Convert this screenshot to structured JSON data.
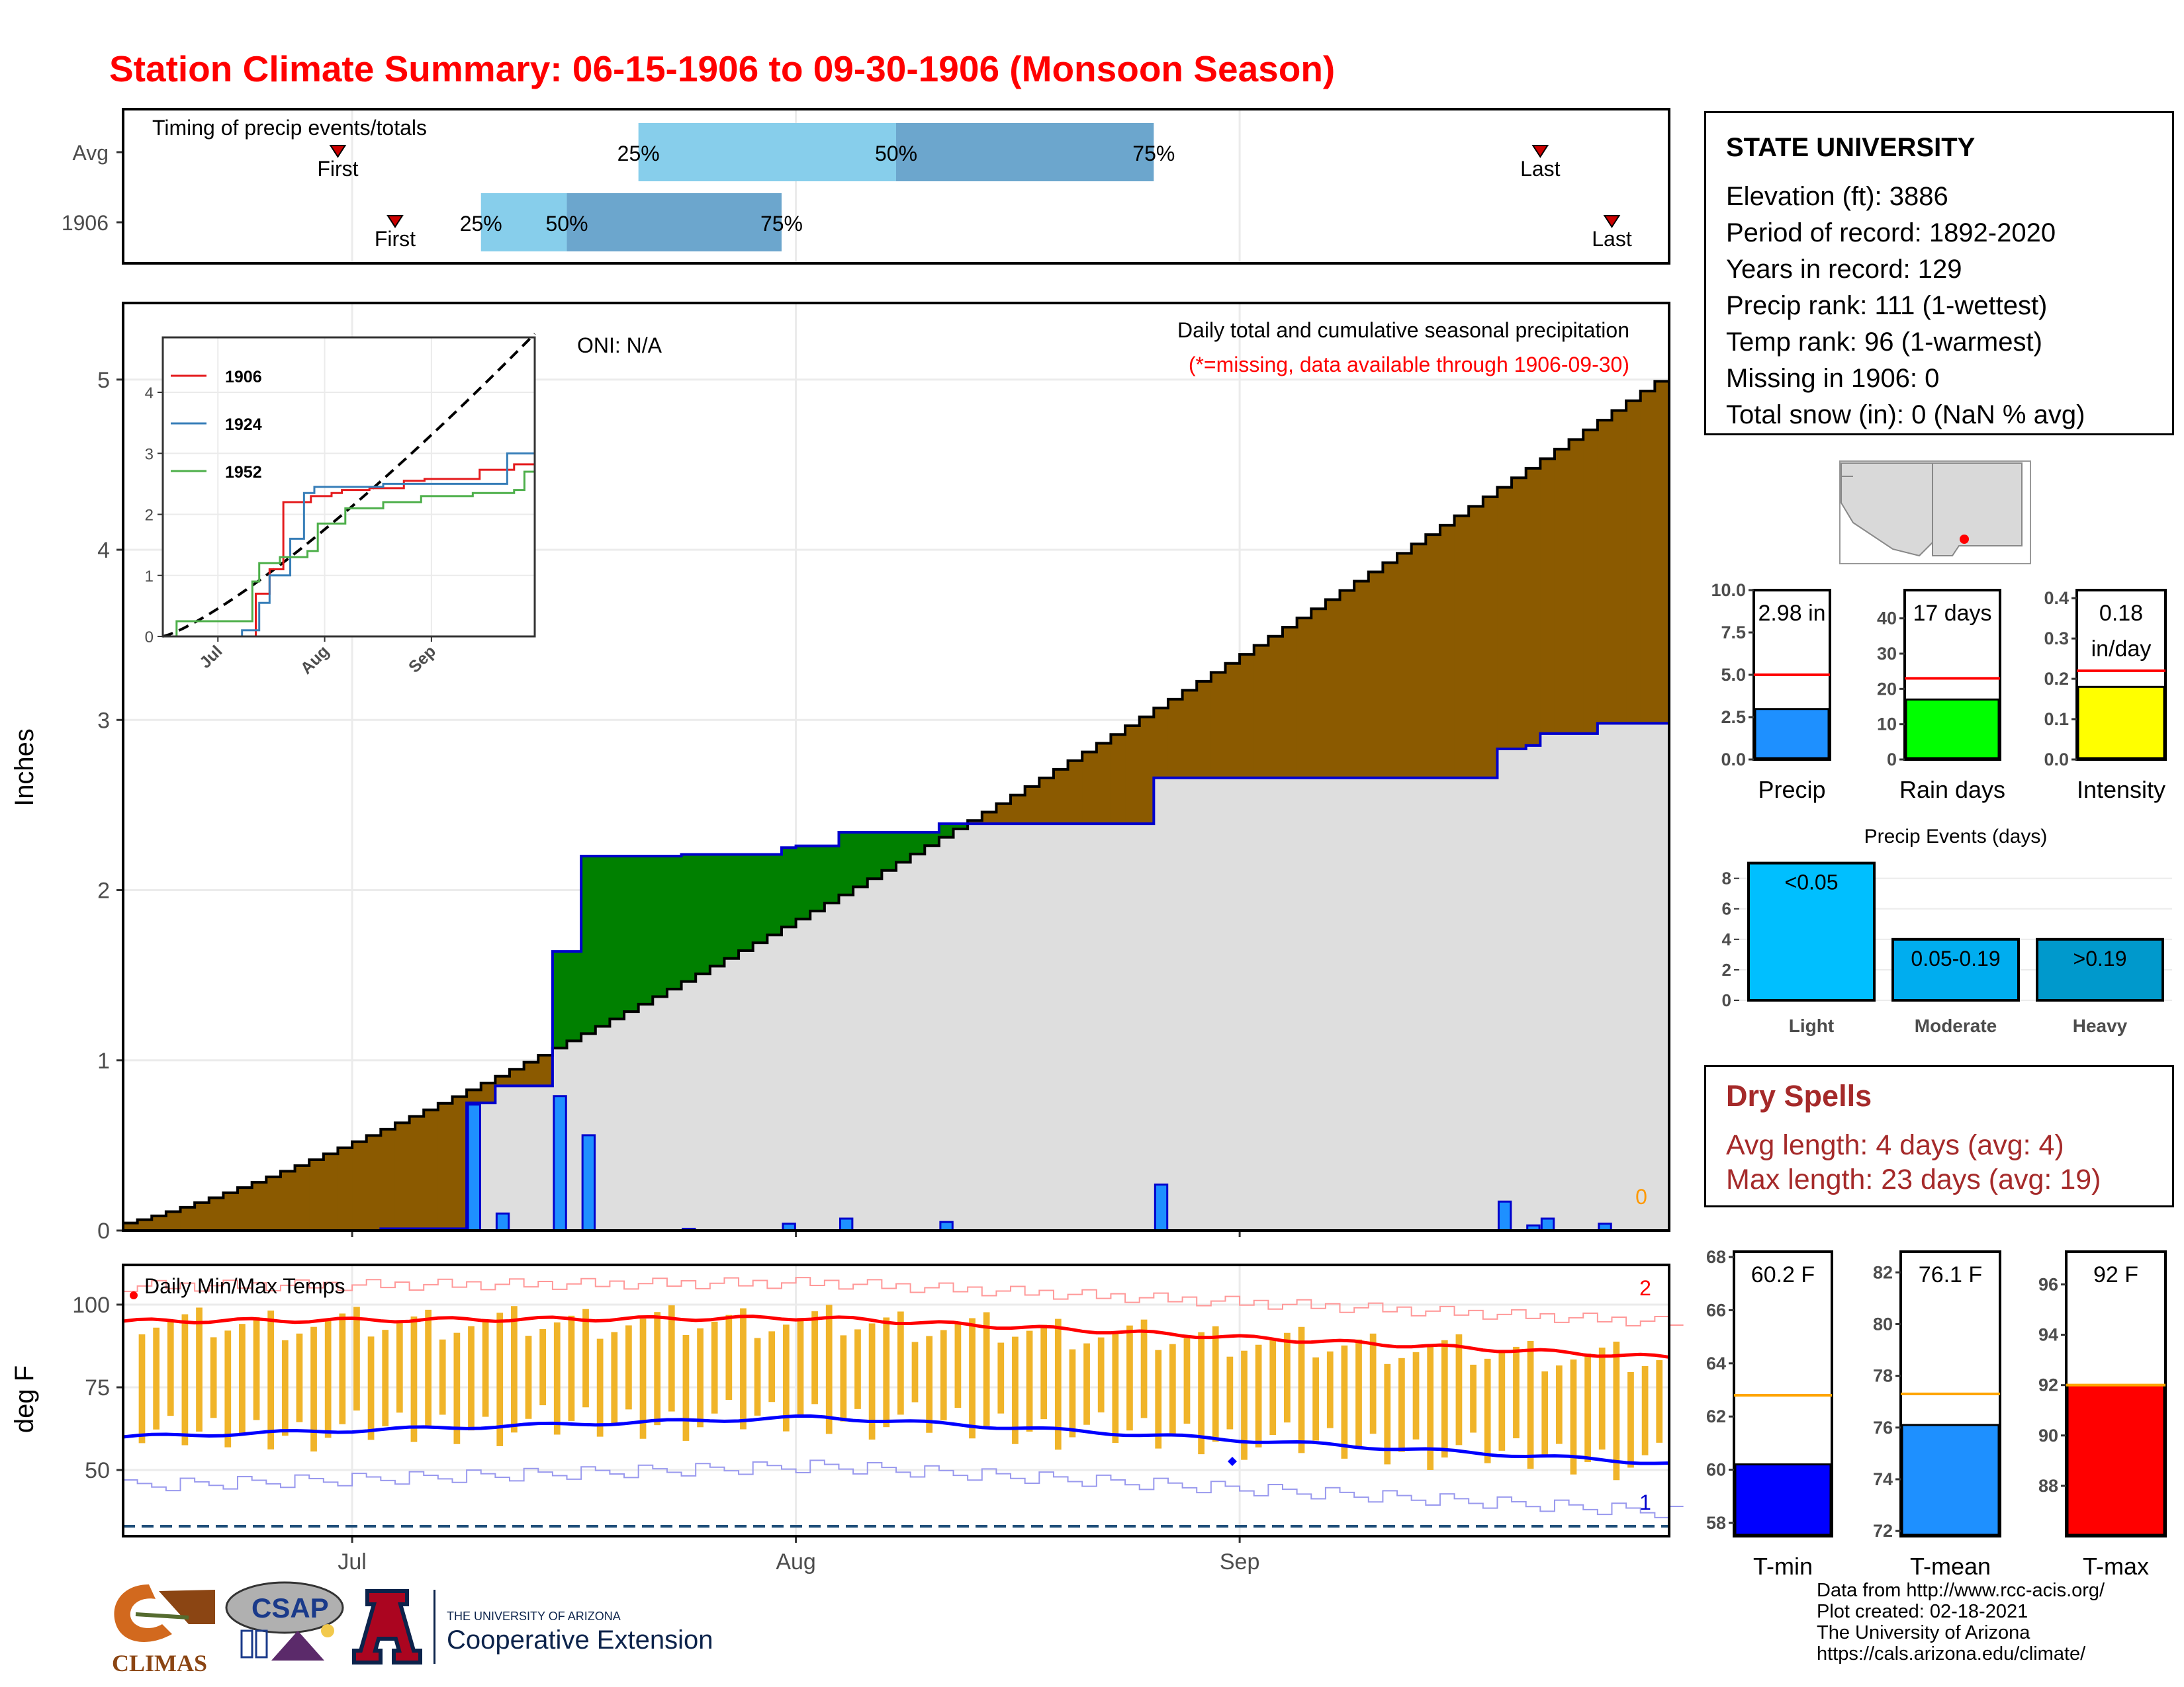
{
  "title": "Station Climate Summary: 06-15-1906 to 09-30-1906 (Monsoon Season)",
  "station": {
    "name": "STATE UNIVERSITY",
    "lines": [
      "Elevation (ft): 3886",
      "Period of record: 1892-2020",
      "Years in record: 129",
      "Precip rank: 111 (1-wettest)",
      "Temp rank: 96 (1-warmest)",
      "Missing in 1906: 0",
      "Total snow (in): 0 (NaN % avg)"
    ]
  },
  "dry_spells": {
    "title": "Dry Spells",
    "avg_line": "Avg length: 4 days (avg: 4)",
    "max_line": "Max length: 23 days (avg: 19)"
  },
  "credits": [
    "Data from http://www.rcc-acis.org/",
    "Plot created: 02-18-2021",
    "The University of Arizona",
    "https://cals.arizona.edu/climate/"
  ],
  "logos": {
    "climas": "CLIMAS",
    "csap": "CSAP",
    "ua_top": "THE UNIVERSITY OF ARIZONA",
    "ua_bottom": "Cooperative Extension"
  },
  "colors": {
    "title": "#ff0000",
    "above_avg": "#8B5A00",
    "below_avg": "#008000",
    "observed_fill": "#DEDEDE",
    "observed_line": "#0000CD",
    "daily_bar": "#1E90FF",
    "temp_bar": "#F0B429",
    "dry_spell": "#A52A2A"
  },
  "chart_data": [
    {
      "id": "timing",
      "type": "range-bar",
      "subtitle": "Timing of precip events/totals",
      "rows": [
        "Avg",
        "1906"
      ],
      "x_domain": [
        "1906-06-15",
        "1906-09-30"
      ],
      "avg": {
        "first": "1906-06-30",
        "p25": "1906-07-21",
        "p50": "1906-08-08",
        "p75": "1906-08-26",
        "last": "1906-09-22"
      },
      "observed": {
        "first": "1906-07-04",
        "p25": "1906-07-10",
        "p50": "1906-07-16",
        "p75": "1906-07-31",
        "last": "1906-09-27"
      },
      "labels": {
        "first": "First",
        "last": "Last",
        "p25": "25%",
        "p50": "50%",
        "p75": "75%"
      }
    },
    {
      "id": "precip",
      "type": "area",
      "ylabel": "Inches",
      "subtitle": "Daily total and cumulative seasonal precipitation",
      "note": "(*=missing, data available through 1906-09-30)",
      "oni": "ONI: N/A",
      "corner_count": "0",
      "ylim": [
        0,
        5.45
      ],
      "yticks": [
        0,
        1,
        2,
        3,
        4,
        5
      ],
      "x_domain": [
        "1906-06-15",
        "1906-09-30"
      ],
      "xticks": [
        {
          "date": "1906-07-01",
          "label": "Jul"
        },
        {
          "date": "1906-08-01",
          "label": "Aug"
        },
        {
          "date": "1906-09-01",
          "label": "Sep"
        }
      ],
      "avg_cumulative_end": 4.96,
      "observed_cumulative_steps": [
        {
          "date": "1906-06-15",
          "value": 0.0
        },
        {
          "date": "1906-07-03",
          "value": 0.01
        },
        {
          "date": "1906-07-09",
          "value": 0.75
        },
        {
          "date": "1906-07-11",
          "value": 0.85
        },
        {
          "date": "1906-07-15",
          "value": 1.64
        },
        {
          "date": "1906-07-17",
          "value": 2.2
        },
        {
          "date": "1906-07-24",
          "value": 2.21
        },
        {
          "date": "1906-07-31",
          "value": 2.25
        },
        {
          "date": "1906-08-01",
          "value": 2.26
        },
        {
          "date": "1906-08-04",
          "value": 2.34
        },
        {
          "date": "1906-08-11",
          "value": 2.39
        },
        {
          "date": "1906-08-26",
          "value": 2.66
        },
        {
          "date": "1906-09-19",
          "value": 2.83
        },
        {
          "date": "1906-09-21",
          "value": 2.85
        },
        {
          "date": "1906-09-22",
          "value": 2.92
        },
        {
          "date": "1906-09-26",
          "value": 2.98
        }
      ],
      "daily": [
        {
          "date": "1906-07-09",
          "value": 0.74
        },
        {
          "date": "1906-07-11",
          "value": 0.1
        },
        {
          "date": "1906-07-15",
          "value": 0.79
        },
        {
          "date": "1906-07-17",
          "value": 0.56
        },
        {
          "date": "1906-07-24",
          "value": 0.01
        },
        {
          "date": "1906-07-31",
          "value": 0.04
        },
        {
          "date": "1906-08-04",
          "value": 0.07
        },
        {
          "date": "1906-08-11",
          "value": 0.05
        },
        {
          "date": "1906-08-26",
          "value": 0.27
        },
        {
          "date": "1906-09-19",
          "value": 0.17
        },
        {
          "date": "1906-09-21",
          "value": 0.03
        },
        {
          "date": "1906-09-22",
          "value": 0.07
        },
        {
          "date": "1906-09-26",
          "value": 0.04
        }
      ]
    },
    {
      "id": "inset",
      "type": "line",
      "ylim": [
        0,
        4.9
      ],
      "yticks": [
        0,
        1,
        2,
        3,
        4
      ],
      "x_domain": [
        "1906-06-15",
        "1906-09-30"
      ],
      "xticks": [
        {
          "date": "1906-07-01",
          "label": "Jul"
        },
        {
          "date": "1906-08-01",
          "label": "Aug"
        },
        {
          "date": "1906-09-01",
          "label": "Sep"
        }
      ],
      "series": [
        {
          "name": "1906",
          "color": "#E41A1C",
          "steps": [
            [
              0,
              0
            ],
            [
              26,
              0
            ],
            [
              27,
              0.7
            ],
            [
              31,
              1.1
            ],
            [
              35,
              2.2
            ],
            [
              43,
              2.3
            ],
            [
              49,
              2.35
            ],
            [
              52,
              2.4
            ],
            [
              60,
              2.43
            ],
            [
              70,
              2.55
            ],
            [
              76,
              2.58
            ],
            [
              92,
              2.73
            ],
            [
              102,
              2.82
            ],
            [
              108,
              2.98
            ]
          ]
        },
        {
          "name": "1924",
          "color": "#377EB8",
          "steps": [
            [
              0,
              0
            ],
            [
              23,
              0.1
            ],
            [
              28,
              0.55
            ],
            [
              31,
              1.0
            ],
            [
              37,
              1.6
            ],
            [
              41,
              2.35
            ],
            [
              44,
              2.45
            ],
            [
              54,
              2.45
            ],
            [
              64,
              2.5
            ],
            [
              81,
              2.5
            ],
            [
              99,
              2.5
            ],
            [
              100,
              3.0
            ],
            [
              108,
              3.0
            ]
          ]
        },
        {
          "name": "1952",
          "color": "#4DAF4A",
          "steps": [
            [
              0,
              0
            ],
            [
              4,
              0.25
            ],
            [
              25,
              0.25
            ],
            [
              26,
              0.9
            ],
            [
              28,
              1.2
            ],
            [
              34,
              1.3
            ],
            [
              42,
              1.4
            ],
            [
              45,
              1.85
            ],
            [
              53,
              2.1
            ],
            [
              64,
              2.2
            ],
            [
              75,
              2.3
            ],
            [
              90,
              2.35
            ],
            [
              102,
              2.4
            ],
            [
              105,
              2.7
            ],
            [
              108,
              2.95
            ]
          ]
        }
      ],
      "avg_end": 4.96
    },
    {
      "id": "temps",
      "type": "bar",
      "subtitle": "Daily Min/Max Temps",
      "ylabel": "deg F",
      "ylim": [
        30,
        112
      ],
      "yticks": [
        50,
        75,
        100
      ],
      "records": {
        "high": "2",
        "low": "1"
      },
      "x_domain": [
        "1906-06-15",
        "1906-09-30"
      ],
      "xticks": [
        {
          "date": "1906-07-01",
          "label": "Jul"
        },
        {
          "date": "1906-08-01",
          "label": "Aug"
        },
        {
          "date": "1906-09-01",
          "label": "Sep"
        }
      ],
      "avg_max": {
        "start": 95,
        "mid": 96,
        "end": 84
      },
      "avg_min": {
        "start": 60,
        "mid": 66,
        "end": 52
      },
      "freeze_line": 33
    },
    {
      "id": "precip-gauges",
      "type": "bar",
      "panels": [
        {
          "label": "Precip",
          "value": 2.98,
          "value_label": "2.98 in",
          "avg": 5.0,
          "ylim": [
            0,
            10
          ],
          "yticks": [
            "0.0",
            "2.5",
            "5.0",
            "7.5",
            "10.0"
          ],
          "color": "#1E90FF"
        },
        {
          "label": "Rain days",
          "value": 17,
          "value_label": "17 days",
          "avg": 23,
          "ylim": [
            0,
            48
          ],
          "yticks": [
            "0",
            "10",
            "20",
            "30",
            "40"
          ],
          "color": "#00FF00"
        },
        {
          "label": "Intensity",
          "value": 0.18,
          "value_label": "0.18 in/day",
          "avg": 0.22,
          "ylim": [
            0,
            0.42
          ],
          "yticks": [
            "0.0",
            "0.1",
            "0.2",
            "0.3",
            "0.4"
          ],
          "color": "#FFFF00"
        }
      ]
    },
    {
      "id": "precip-events",
      "type": "bar",
      "title": "Precip Events (days)",
      "categories": [
        "Light",
        "Moderate",
        "Heavy"
      ],
      "values": [
        9,
        4,
        4
      ],
      "bar_labels": [
        "<0.05",
        "0.05-0.19",
        ">0.19"
      ],
      "ylim": [
        0,
        9.2
      ],
      "yticks": [
        0,
        2,
        4,
        6,
        8
      ],
      "colors": [
        "#00BFFF",
        "#00ADEF",
        "#0099CC"
      ]
    },
    {
      "id": "temp-gauges",
      "type": "bar",
      "panels": [
        {
          "label": "T-min",
          "value": 60.2,
          "value_label": "60.2 F",
          "avg": 62.8,
          "ylim": [
            57.5,
            68.2
          ],
          "yticks": [
            58,
            60,
            62,
            64,
            66,
            68
          ],
          "color": "#0000FF"
        },
        {
          "label": "T-mean",
          "value": 76.1,
          "value_label": "76.1 F",
          "avg": 77.3,
          "ylim": [
            71.8,
            82.8
          ],
          "yticks": [
            72,
            74,
            76,
            78,
            80,
            82
          ],
          "color": "#1E90FF"
        },
        {
          "label": "T-max",
          "value": 92,
          "value_label": "92 F",
          "avg": 92.0,
          "ylim": [
            86,
            97.3
          ],
          "yticks": [
            88,
            90,
            92,
            94,
            96
          ],
          "color": "#FF0000"
        }
      ]
    }
  ]
}
